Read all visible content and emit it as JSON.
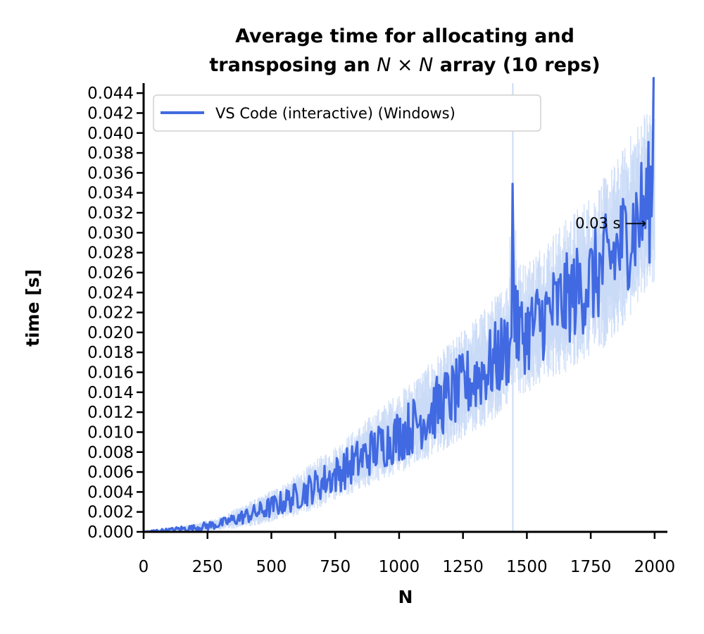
{
  "chart_data": {
    "type": "line",
    "title_line1": "Average time for allocating and",
    "title_line2_pre": "transposing an ",
    "title_math": "N × N",
    "title_line2_post": " array (10 reps)",
    "xlabel": "N",
    "ylabel": "time [s]",
    "xlim": [
      0,
      2050
    ],
    "ylim": [
      0,
      0.045
    ],
    "xticks": [
      0,
      250,
      500,
      750,
      1000,
      1250,
      1500,
      1750,
      2000
    ],
    "xtick_labels": [
      "0",
      "250",
      "500",
      "750",
      "1000",
      "1250",
      "1500",
      "1750",
      "2000"
    ],
    "yticks": [
      0.0,
      0.002,
      0.004,
      0.006,
      0.008,
      0.01,
      0.012,
      0.014,
      0.016,
      0.018,
      0.02,
      0.022,
      0.024,
      0.026,
      0.028,
      0.03,
      0.032,
      0.034,
      0.036,
      0.038,
      0.04,
      0.042,
      0.044
    ],
    "ytick_labels": [
      "0.000",
      "0.002",
      "0.004",
      "0.006",
      "0.008",
      "0.010",
      "0.012",
      "0.014",
      "0.016",
      "0.018",
      "0.020",
      "0.022",
      "0.024",
      "0.026",
      "0.028",
      "0.030",
      "0.032",
      "0.034",
      "0.036",
      "0.038",
      "0.040",
      "0.042",
      "0.044"
    ],
    "legend_placement": "upper-left",
    "grid": false,
    "series": [
      {
        "name": "VS Code (interactive) (Windows)",
        "color": "#4169e1",
        "band_color": "#c7d9f7",
        "x": [
          0,
          50,
          100,
          150,
          200,
          250,
          300,
          350,
          400,
          450,
          500,
          550,
          600,
          650,
          700,
          750,
          800,
          850,
          900,
          950,
          1000,
          1050,
          1100,
          1150,
          1200,
          1250,
          1300,
          1350,
          1400,
          1430,
          1445,
          1460,
          1500,
          1550,
          1600,
          1650,
          1700,
          1750,
          1800,
          1850,
          1900,
          1950,
          2000
        ],
        "y": [
          0.0,
          0.0001,
          0.0002,
          0.0003,
          0.0004,
          0.0006,
          0.0008,
          0.0012,
          0.0016,
          0.002,
          0.0025,
          0.003,
          0.0036,
          0.0043,
          0.005,
          0.0057,
          0.0065,
          0.0073,
          0.0082,
          0.009,
          0.0097,
          0.0106,
          0.0115,
          0.0125,
          0.0135,
          0.0145,
          0.0155,
          0.0165,
          0.0178,
          0.0185,
          0.039,
          0.02,
          0.02,
          0.0212,
          0.0222,
          0.0232,
          0.0242,
          0.0252,
          0.0265,
          0.028,
          0.03,
          0.032,
          0.034
        ],
        "noise": [
          0.0,
          0.0001,
          0.0001,
          0.0002,
          0.0002,
          0.0003,
          0.0003,
          0.0004,
          0.0005,
          0.0006,
          0.0007,
          0.0008,
          0.0009,
          0.001,
          0.0011,
          0.0012,
          0.0013,
          0.0014,
          0.0015,
          0.0016,
          0.0017,
          0.0018,
          0.0019,
          0.002,
          0.0021,
          0.0022,
          0.0023,
          0.0024,
          0.0025,
          0.0025,
          0.0,
          0.0026,
          0.0026,
          0.0027,
          0.0028,
          0.0029,
          0.003,
          0.0031,
          0.0032,
          0.0033,
          0.0035,
          0.0038,
          0.004
        ],
        "band_half_width": [
          0.0,
          0.0001,
          0.0002,
          0.0002,
          0.0003,
          0.0004,
          0.0005,
          0.0007,
          0.0009,
          0.001,
          0.0012,
          0.0013,
          0.0015,
          0.0017,
          0.0019,
          0.002,
          0.0022,
          0.0024,
          0.0026,
          0.0028,
          0.003,
          0.0032,
          0.0034,
          0.0036,
          0.0038,
          0.004,
          0.0042,
          0.0044,
          0.0046,
          0.0047,
          0.0048,
          0.0048,
          0.005,
          0.0052,
          0.0054,
          0.0056,
          0.0058,
          0.006,
          0.0062,
          0.0064,
          0.0066,
          0.0068,
          0.007
        ]
      }
    ],
    "annotation": {
      "text": "0.03 s ⟶",
      "x": 1990,
      "y": 0.031
    }
  }
}
